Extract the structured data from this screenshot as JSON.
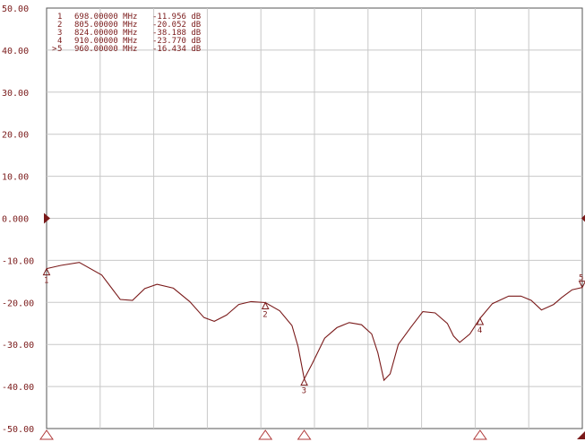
{
  "chart_data": {
    "type": "line",
    "title": "",
    "xlabel": "",
    "ylabel": "",
    "ylim": [
      -50,
      50
    ],
    "xlim": [
      698,
      960
    ],
    "grid": true,
    "x_unit": "MHz",
    "y_unit": "dB",
    "y_ticks": [
      "50.00",
      "40.00",
      "30.00",
      "20.00",
      "10.00",
      "0.000",
      "-10.00",
      "-20.00",
      "-30.00",
      "-40.00",
      "-50.00"
    ],
    "reference_level": 0,
    "colors": {
      "trace": "#7a1a1a",
      "grid": "#c8c8c8",
      "frame": "#555555",
      "text": "#7a1a1a"
    },
    "markers": [
      {
        "index": "1",
        "prefix": " ",
        "freq": "698.00000 MHz",
        "value": "-11.956 dB",
        "x": 698,
        "y": -11.956
      },
      {
        "index": "2",
        "prefix": " ",
        "freq": "805.00000 MHz",
        "value": "-20.052 dB",
        "x": 805,
        "y": -20.052
      },
      {
        "index": "3",
        "prefix": " ",
        "freq": "824.00000 MHz",
        "value": "-38.188 dB",
        "x": 824,
        "y": -38.188
      },
      {
        "index": "4",
        "prefix": " ",
        "freq": "910.00000 MHz",
        "value": "-23.770 dB",
        "x": 910,
        "y": -23.77
      },
      {
        "index": "5",
        "prefix": ">",
        "freq": "960.00000 MHz",
        "value": "-16.434 dB",
        "x": 960,
        "y": -16.434
      }
    ],
    "series": [
      {
        "x": [
          698,
          705,
          714,
          725,
          734,
          740,
          746,
          752,
          760,
          768,
          775,
          780,
          786,
          792,
          798,
          805,
          812,
          818,
          821,
          824,
          828,
          834,
          840,
          846,
          852,
          857,
          860,
          863,
          866,
          870,
          876,
          882,
          888,
          894,
          897,
          900,
          905,
          910,
          916,
          924,
          930,
          935,
          940,
          946,
          950,
          955,
          960
        ],
        "y": [
          -11.96,
          -11.2,
          -10.5,
          -13.5,
          -19.3,
          -19.5,
          -16.7,
          -15.7,
          -16.6,
          -19.8,
          -23.6,
          -24.5,
          -23.0,
          -20.5,
          -19.8,
          -20.05,
          -22.0,
          -25.5,
          -30.5,
          -38.19,
          -34.5,
          -28.5,
          -26.0,
          -24.8,
          -25.3,
          -27.5,
          -32.0,
          -38.5,
          -37.0,
          -30.0,
          -26.0,
          -22.2,
          -22.5,
          -25.0,
          -28.0,
          -29.5,
          -27.5,
          -23.77,
          -20.3,
          -18.5,
          -18.5,
          -19.5,
          -21.8,
          -20.5,
          -18.8,
          -17.0,
          -16.43
        ]
      }
    ]
  }
}
